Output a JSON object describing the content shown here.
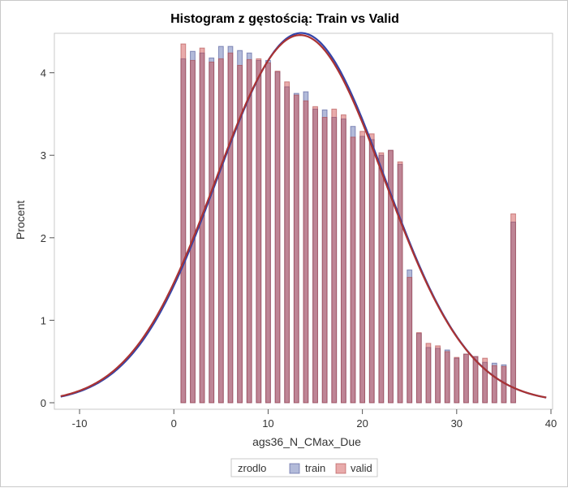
{
  "chart_data": {
    "type": "bar",
    "title": "Histogram z gęstością: Train vs Valid",
    "xlabel": "ags36_N_CMax_Due",
    "ylabel": "Procent",
    "xlim": [
      -12.5,
      40
    ],
    "ylim": [
      0,
      4.4
    ],
    "xticks": [
      -10,
      0,
      10,
      20,
      30,
      40
    ],
    "yticks": [
      0,
      1,
      2,
      3,
      4
    ],
    "grid": false,
    "legend_title": "zrodlo",
    "legend_position": "bottom",
    "bin_width": 0.5,
    "x": [
      1,
      2,
      3,
      4,
      5,
      6,
      7,
      8,
      9,
      10,
      11,
      12,
      13,
      14,
      15,
      16,
      17,
      18,
      19,
      20,
      21,
      22,
      23,
      24,
      25,
      26,
      27,
      28,
      29,
      30,
      31,
      32,
      33,
      34,
      35,
      36
    ],
    "series": [
      {
        "name": "train",
        "color": "#5566aa",
        "values": [
          4.17,
          4.26,
          4.24,
          4.18,
          4.32,
          4.32,
          4.27,
          4.24,
          4.15,
          4.15,
          4.01,
          3.83,
          3.75,
          3.77,
          3.56,
          3.55,
          3.46,
          3.44,
          3.35,
          3.23,
          3.19,
          3.0,
          3.06,
          2.89,
          1.61,
          0.84,
          0.67,
          0.66,
          0.64,
          0.54,
          0.59,
          0.56,
          0.49,
          0.48,
          0.46,
          2.19
        ]
      },
      {
        "name": "valid",
        "color": "#cc4444",
        "values": [
          4.35,
          4.15,
          4.3,
          4.13,
          4.17,
          4.24,
          4.09,
          4.16,
          4.17,
          4.12,
          4.02,
          3.89,
          3.73,
          3.66,
          3.59,
          3.46,
          3.56,
          3.49,
          3.22,
          3.29,
          3.26,
          3.03,
          3.06,
          2.92,
          1.52,
          0.85,
          0.72,
          0.69,
          0.62,
          0.55,
          0.59,
          0.56,
          0.54,
          0.45,
          0.44,
          2.29
        ]
      }
    ],
    "density": {
      "type": "normal",
      "train": {
        "mean": 13.5,
        "sd": 8.9,
        "color": "#3344aa"
      },
      "valid": {
        "mean": 13.4,
        "sd": 8.95,
        "color": "#aa3333"
      }
    }
  }
}
